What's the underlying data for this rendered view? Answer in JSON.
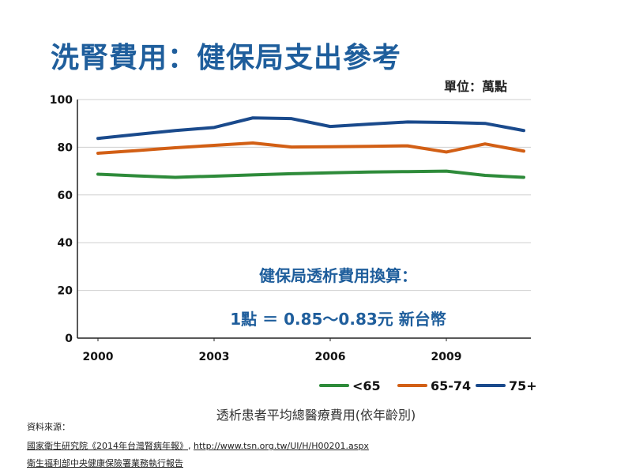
{
  "title": "洗腎費用：健保局支出參考",
  "unit": "單位：萬點",
  "caption": "透析患者平均總醫療費用(依年齡別)",
  "annotation": {
    "line1": "健保局透析費用換算：",
    "line2": "1點 ＝ 0.85～0.83元 新台幣"
  },
  "sources": {
    "label": "資料來源：",
    "line1_a": "國家衛生研究院《2014年台灣腎病年報》",
    "line1_sep": ", ",
    "line1_b": "http://www.tsn.org.tw/UI/H/H00201.aspx",
    "line2": "衛生福利部中央健康保險署業務執行報告"
  },
  "chart_data": {
    "type": "line",
    "x": [
      2000,
      2001,
      2002,
      2003,
      2004,
      2005,
      2006,
      2007,
      2008,
      2009,
      2010,
      2011
    ],
    "xticks": [
      "2000",
      "2003",
      "2006",
      "2009"
    ],
    "yticks": [
      "0",
      "20",
      "40",
      "60",
      "80",
      "100"
    ],
    "ylim": [
      0,
      100
    ],
    "grid": true,
    "legend_position": "bottom-right",
    "series": [
      {
        "name": "<65",
        "color": "#2e8b3a",
        "values": [
          68.7,
          68.0,
          67.4,
          67.9,
          68.4,
          68.9,
          69.3,
          69.6,
          69.8,
          70.0,
          68.2,
          67.4
        ]
      },
      {
        "name": "65-74",
        "color": "#d25f15",
        "values": [
          77.5,
          78.6,
          79.8,
          80.8,
          81.8,
          80.1,
          80.2,
          80.4,
          80.6,
          78.0,
          81.4,
          78.4
        ]
      },
      {
        "name": "75+",
        "color": "#1a4a8c",
        "values": [
          83.7,
          85.4,
          87.0,
          88.3,
          92.3,
          92.0,
          88.7,
          89.7,
          90.6,
          90.4,
          90.0,
          87.0
        ]
      }
    ]
  }
}
